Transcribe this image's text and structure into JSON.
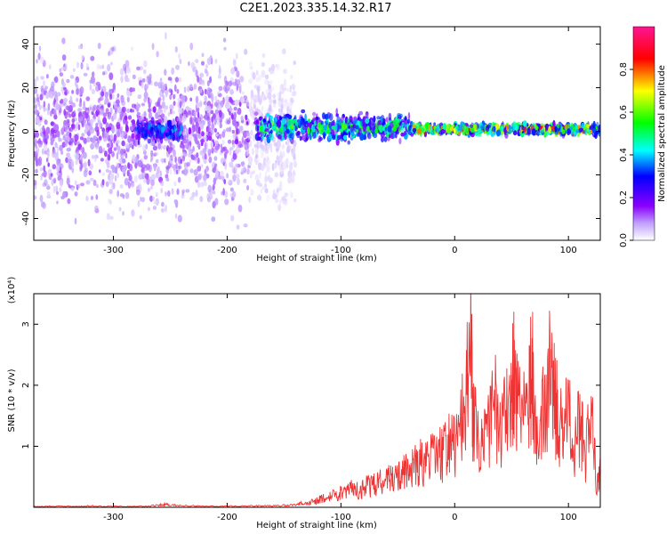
{
  "title": "C2E1.2023.335.14.32.R17",
  "chart_data": [
    {
      "type": "heatmap",
      "xlabel": "Height of straight line (km)",
      "ylabel": "Frequency (Hz)",
      "xlim": [
        -370,
        128
      ],
      "ylim": [
        -50,
        48
      ],
      "xticks": [
        -300,
        -200,
        -100,
        0,
        100
      ],
      "xtick_labels": [
        "-300",
        "-200",
        "-100",
        "0",
        "100"
      ],
      "yticks": [
        -40,
        -20,
        0,
        20,
        40
      ],
      "ytick_labels": [
        "-40",
        "-20",
        "0",
        "20",
        "40"
      ],
      "colorbar": {
        "label": "Normalized spectral amplitude",
        "range": [
          0,
          1
        ],
        "ticks": [
          0.0,
          0.2,
          0.4,
          0.6,
          0.8
        ],
        "tick_labels": [
          "0.0",
          "0.2",
          "0.4",
          "0.6",
          "0.8"
        ],
        "colors": [
          "#ffffff",
          "#8b00ff",
          "#0000ff",
          "#00ffff",
          "#00ff00",
          "#ffff00",
          "#ff0000",
          "#ff1493"
        ]
      },
      "regions": [
        {
          "x": [
            -370,
            -180
          ],
          "freq_center": 0,
          "freq_spread": 48,
          "amplitude": 0.1
        },
        {
          "x": [
            -180,
            -140
          ],
          "freq_center": 0,
          "freq_spread": 48,
          "amplitude": 0.04
        },
        {
          "x": [
            -280,
            -240
          ],
          "freq_center": 0,
          "freq_spread": 6,
          "amplitude": 0.28
        },
        {
          "x": [
            -175,
            -40
          ],
          "freq_center": 2,
          "freq_spread": 8,
          "amplitude": 0.4
        },
        {
          "x": [
            -40,
            128
          ],
          "freq_center": 1,
          "freq_spread": 3,
          "amplitude": 0.6
        }
      ],
      "grid": false
    },
    {
      "type": "line",
      "xlabel": "Height of straight line (km)",
      "ylabel": "SNR (10 * v/v)",
      "y_multiplier": "(x10⁴)",
      "xlim": [
        -370,
        128
      ],
      "ylim": [
        0,
        3.5
      ],
      "xticks": [
        -300,
        -200,
        -100,
        0,
        100
      ],
      "xtick_labels": [
        "-300",
        "-200",
        "-100",
        "0",
        "100"
      ],
      "yticks": [
        1,
        2,
        3
      ],
      "ytick_labels": [
        "1",
        "2",
        "3"
      ],
      "color": "#ee3333",
      "x": [
        -370,
        -360,
        -350,
        -340,
        -330,
        -320,
        -310,
        -300,
        -290,
        -280,
        -270,
        -260,
        -255,
        -250,
        -240,
        -230,
        -220,
        -210,
        -200,
        -190,
        -180,
        -170,
        -160,
        -150,
        -140,
        -135,
        -130,
        -125,
        -120,
        -115,
        -110,
        -105,
        -100,
        -95,
        -90,
        -85,
        -80,
        -75,
        -70,
        -65,
        -60,
        -55,
        -50,
        -45,
        -40,
        -35,
        -30,
        -25,
        -20,
        -15,
        -10,
        -5,
        0,
        5,
        10,
        14,
        16,
        20,
        25,
        30,
        35,
        40,
        45,
        50,
        52,
        55,
        60,
        65,
        68,
        70,
        75,
        80,
        85,
        88,
        90,
        95,
        100,
        105,
        110,
        115,
        120,
        125,
        128
      ],
      "y": [
        0.02,
        0.02,
        0.02,
        0.02,
        0.02,
        0.03,
        0.02,
        0.02,
        0.02,
        0.02,
        0.03,
        0.05,
        0.07,
        0.05,
        0.03,
        0.03,
        0.02,
        0.02,
        0.03,
        0.02,
        0.03,
        0.03,
        0.03,
        0.04,
        0.05,
        0.08,
        0.07,
        0.12,
        0.15,
        0.2,
        0.22,
        0.28,
        0.32,
        0.35,
        0.38,
        0.36,
        0.42,
        0.45,
        0.48,
        0.55,
        0.6,
        0.68,
        0.62,
        0.72,
        0.75,
        0.85,
        0.95,
        0.9,
        1.05,
        1.2,
        1.1,
        1.4,
        1.3,
        1.6,
        2.3,
        3.45,
        1.9,
        1.7,
        1.2,
        1.8,
        2.2,
        1.5,
        2.0,
        2.6,
        2.95,
        2.2,
        1.8,
        2.3,
        3.0,
        2.1,
        1.6,
        2.4,
        2.85,
        2.2,
        2.1,
        1.5,
        2.0,
        1.2,
        1.8,
        1.1,
        2.05,
        0.4,
        0.8
      ]
    }
  ]
}
